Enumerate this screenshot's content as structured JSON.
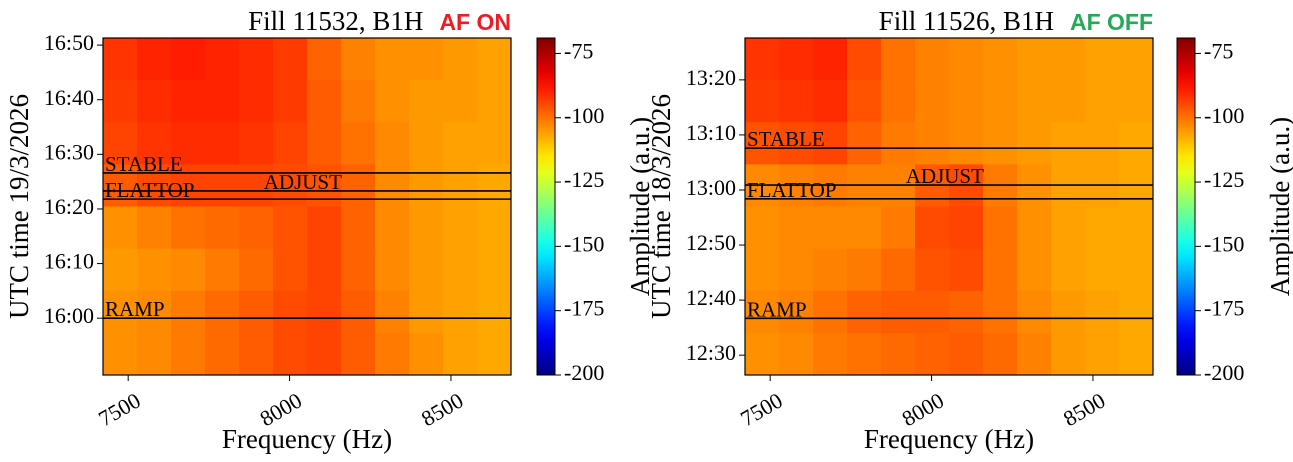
{
  "chart_data": [
    {
      "type": "heatmap",
      "title": "Fill 11532, B1H",
      "title_tag": "AF ON",
      "title_tag_color": "#ee1c25",
      "xlabel": "Frequency (Hz)",
      "ylabel": "UTC time 19/3/2026",
      "colorbar_label": "Amplitude (a.u.)",
      "xlim": [
        7422,
        8686
      ],
      "xticks": [
        7500,
        8000,
        8500
      ],
      "ylim": [
        949.6,
        1011.3
      ],
      "yticks": [
        {
          "value": 960,
          "label": "16:00"
        },
        {
          "value": 970,
          "label": "16:10"
        },
        {
          "value": 980,
          "label": "16:20"
        },
        {
          "value": 990,
          "label": "16:30"
        },
        {
          "value": 1000,
          "label": "16:40"
        },
        {
          "value": 1010,
          "label": "16:50"
        }
      ],
      "clim": [
        -200,
        -69
      ],
      "cticks": [
        -75,
        -100,
        -125,
        -150,
        -175,
        -200
      ],
      "colormap": "jet",
      "z": [
        [
          -92,
          -90,
          -89,
          -90,
          -91,
          -93,
          -98,
          -102,
          -104,
          -104,
          -105,
          -106
        ],
        [
          -93,
          -91,
          -90,
          -90,
          -91,
          -93,
          -97,
          -101,
          -104,
          -105,
          -105,
          -106
        ],
        [
          -94,
          -92,
          -91,
          -91,
          -92,
          -94,
          -97,
          -100,
          -103,
          -105,
          -106,
          -106
        ],
        [
          -97,
          -95,
          -94,
          -94,
          -94,
          -95,
          -96,
          -98,
          -103,
          -105,
          -106,
          -107
        ],
        [
          -104,
          -102,
          -100,
          -99,
          -98,
          -96,
          -94,
          -98,
          -103,
          -105,
          -106,
          -107
        ],
        [
          -105,
          -104,
          -103,
          -101,
          -99,
          -96,
          -94,
          -98,
          -103,
          -105,
          -106,
          -107
        ],
        [
          -104,
          -103,
          -101,
          -99,
          -97,
          -95,
          -94,
          -97,
          -102,
          -105,
          -106,
          -107
        ],
        [
          -104,
          -103,
          -101,
          -99,
          -97,
          -95,
          -94,
          -97,
          -101,
          -104,
          -106,
          -107
        ]
      ],
      "annotations": [
        {
          "text": "STABLE",
          "y": 986.6
        },
        {
          "text": "ADJUST",
          "y": 983.3,
          "x": 7920
        },
        {
          "text": "FLATTOP",
          "y": 981.8
        },
        {
          "text": "RAMP",
          "y": 960
        }
      ]
    },
    {
      "type": "heatmap",
      "title": "Fill 11526, B1H",
      "title_tag": "AF OFF",
      "title_tag_color": "#22aa55",
      "xlabel": "Frequency (Hz)",
      "ylabel": "UTC time 18/3/2026",
      "colorbar_label": "Amplitude (a.u.)",
      "xlim": [
        7422,
        8686
      ],
      "xticks": [
        7500,
        8000,
        8500
      ],
      "ylim": [
        746.4,
        807.6
      ],
      "yticks": [
        {
          "value": 750,
          "label": "12:30"
        },
        {
          "value": 760,
          "label": "12:40"
        },
        {
          "value": 770,
          "label": "12:50"
        },
        {
          "value": 780,
          "label": "13:00"
        },
        {
          "value": 790,
          "label": "13:10"
        },
        {
          "value": 800,
          "label": "13:20"
        }
      ],
      "clim": [
        -200,
        -69
      ],
      "cticks": [
        -75,
        -100,
        -125,
        -150,
        -175,
        -200
      ],
      "colormap": "jet",
      "z": [
        [
          -92,
          -91,
          -90,
          -95,
          -100,
          -102,
          -103,
          -104,
          -105,
          -105,
          -106,
          -106
        ],
        [
          -93,
          -92,
          -91,
          -96,
          -100,
          -102,
          -103,
          -104,
          -105,
          -105,
          -106,
          -106
        ],
        [
          -96,
          -95,
          -94,
          -98,
          -101,
          -102,
          -103,
          -104,
          -105,
          -106,
          -106,
          -107
        ],
        [
          -103,
          -102,
          -101,
          -102,
          -102,
          -97,
          -95,
          -101,
          -104,
          -106,
          -106,
          -107
        ],
        [
          -104,
          -103,
          -103,
          -103,
          -101,
          -95,
          -94,
          -100,
          -104,
          -106,
          -107,
          -107
        ],
        [
          -104,
          -103,
          -102,
          -101,
          -99,
          -96,
          -95,
          -100,
          -104,
          -106,
          -107,
          -107
        ],
        [
          -103,
          -102,
          -100,
          -98,
          -97,
          -97,
          -98,
          -100,
          -103,
          -105,
          -106,
          -107
        ],
        [
          -104,
          -103,
          -101,
          -100,
          -99,
          -98,
          -97,
          -99,
          -102,
          -105,
          -106,
          -107
        ]
      ],
      "annotations": [
        {
          "text": "STABLE",
          "y": 787.6
        },
        {
          "text": "ADJUST",
          "y": 780.9,
          "x": 7920
        },
        {
          "text": "FLATTOP",
          "y": 778.4
        },
        {
          "text": "RAMP",
          "y": 756.7
        }
      ]
    }
  ]
}
